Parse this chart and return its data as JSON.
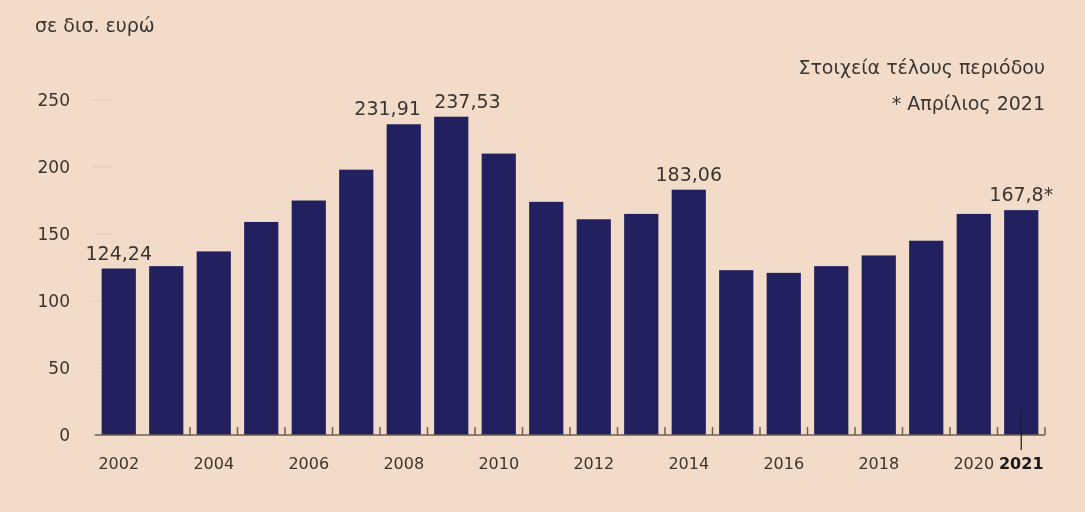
{
  "chart_data": {
    "type": "bar",
    "ylabel": "σε δισ. ευρώ",
    "annotations": [
      "Στοιχεία τέλους περιόδου",
      "* Απρίλιος 2021"
    ],
    "categories": [
      "2002",
      null,
      "2004",
      null,
      "2006",
      null,
      "2008",
      null,
      "2010",
      null,
      "2012",
      null,
      "2014",
      null,
      "2016",
      null,
      "2018",
      null,
      "2020",
      "2021"
    ],
    "values": [
      124.24,
      126,
      137,
      159,
      175,
      198,
      231.91,
      237.53,
      210,
      174,
      161,
      165,
      183.06,
      123,
      121,
      126,
      134,
      145,
      165,
      167.8
    ],
    "value_labels": [
      "124,24",
      null,
      null,
      null,
      null,
      null,
      "231,91",
      "237,53",
      null,
      null,
      null,
      null,
      "183,06",
      null,
      null,
      null,
      null,
      null,
      null,
      "167,8*"
    ],
    "color": "#22205e",
    "ylim": [
      0,
      250
    ],
    "yticks": [
      0,
      50,
      100,
      150,
      200,
      250
    ],
    "grid": false
  }
}
